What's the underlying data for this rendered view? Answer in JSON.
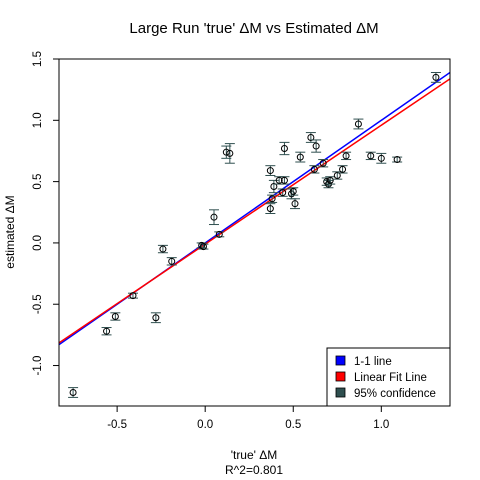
{
  "chart_data": {
    "type": "scatter",
    "title": "Large Run 'true' ΔM vs Estimated ΔM",
    "xlabel": "'true' ΔM",
    "ylabel": "estimated ΔM",
    "subtitle": "R^2=0.801",
    "xlim": [
      -0.83,
      1.39
    ],
    "ylim": [
      -1.33,
      1.5
    ],
    "xticks": [
      -0.5,
      0.0,
      0.5,
      1.0
    ],
    "xtick_labels": [
      "-0.5",
      "0.0",
      "0.5",
      "1.0"
    ],
    "yticks": [
      -1.0,
      -0.5,
      0.0,
      0.5,
      1.0,
      1.5
    ],
    "ytick_labels": [
      "-1.0",
      "-0.5",
      "0.0",
      "0.5",
      "1.0",
      "1.5"
    ],
    "grid": false,
    "legend_position": "bottom-right",
    "legend": [
      {
        "label": "1-1 line",
        "color": "#0000ff"
      },
      {
        "label": "Linear Fit Line",
        "color": "#ff0000"
      },
      {
        "label": "95% confidence",
        "color": "#2f4f4f"
      }
    ],
    "lines": [
      {
        "name": "1-1 line",
        "color": "#0000ff",
        "slope": 1.0,
        "intercept": 0.0
      },
      {
        "name": "Linear Fit Line",
        "color": "#ff0000",
        "slope": 0.97,
        "intercept": -0.01
      }
    ],
    "points": [
      {
        "x": -0.75,
        "y": -1.22,
        "err": 0.04
      },
      {
        "x": -0.56,
        "y": -0.72,
        "err": 0.03
      },
      {
        "x": -0.51,
        "y": -0.6,
        "err": 0.03
      },
      {
        "x": -0.41,
        "y": -0.43,
        "err": 0.02
      },
      {
        "x": -0.28,
        "y": -0.61,
        "err": 0.04
      },
      {
        "x": -0.24,
        "y": -0.05,
        "err": 0.03
      },
      {
        "x": -0.19,
        "y": -0.15,
        "err": 0.03
      },
      {
        "x": -0.02,
        "y": -0.02,
        "err": 0.02
      },
      {
        "x": -0.01,
        "y": -0.03,
        "err": 0.02
      },
      {
        "x": 0.05,
        "y": 0.21,
        "err": 0.06
      },
      {
        "x": 0.08,
        "y": 0.07,
        "err": 0.02
      },
      {
        "x": 0.12,
        "y": 0.74,
        "err": 0.05
      },
      {
        "x": 0.14,
        "y": 0.73,
        "err": 0.08
      },
      {
        "x": 0.37,
        "y": 0.59,
        "err": 0.04
      },
      {
        "x": 0.37,
        "y": 0.28,
        "err": 0.04
      },
      {
        "x": 0.38,
        "y": 0.36,
        "err": 0.03
      },
      {
        "x": 0.39,
        "y": 0.46,
        "err": 0.05
      },
      {
        "x": 0.42,
        "y": 0.51,
        "err": 0.03
      },
      {
        "x": 0.44,
        "y": 0.41,
        "err": 0.03
      },
      {
        "x": 0.45,
        "y": 0.51,
        "err": 0.03
      },
      {
        "x": 0.45,
        "y": 0.77,
        "err": 0.05
      },
      {
        "x": 0.49,
        "y": 0.4,
        "err": 0.04
      },
      {
        "x": 0.5,
        "y": 0.42,
        "err": 0.03
      },
      {
        "x": 0.51,
        "y": 0.32,
        "err": 0.04
      },
      {
        "x": 0.54,
        "y": 0.7,
        "err": 0.04
      },
      {
        "x": 0.6,
        "y": 0.86,
        "err": 0.04
      },
      {
        "x": 0.62,
        "y": 0.6,
        "err": 0.03
      },
      {
        "x": 0.63,
        "y": 0.79,
        "err": 0.05
      },
      {
        "x": 0.67,
        "y": 0.65,
        "err": 0.03
      },
      {
        "x": 0.69,
        "y": 0.5,
        "err": 0.03
      },
      {
        "x": 0.7,
        "y": 0.48,
        "err": 0.03
      },
      {
        "x": 0.71,
        "y": 0.51,
        "err": 0.03
      },
      {
        "x": 0.75,
        "y": 0.55,
        "err": 0.03
      },
      {
        "x": 0.78,
        "y": 0.6,
        "err": 0.03
      },
      {
        "x": 0.8,
        "y": 0.71,
        "err": 0.03
      },
      {
        "x": 0.87,
        "y": 0.97,
        "err": 0.04
      },
      {
        "x": 0.94,
        "y": 0.71,
        "err": 0.03
      },
      {
        "x": 1.0,
        "y": 0.69,
        "err": 0.04
      },
      {
        "x": 1.09,
        "y": 0.68,
        "err": 0.02
      },
      {
        "x": 1.31,
        "y": 1.35,
        "err": 0.04
      }
    ]
  }
}
